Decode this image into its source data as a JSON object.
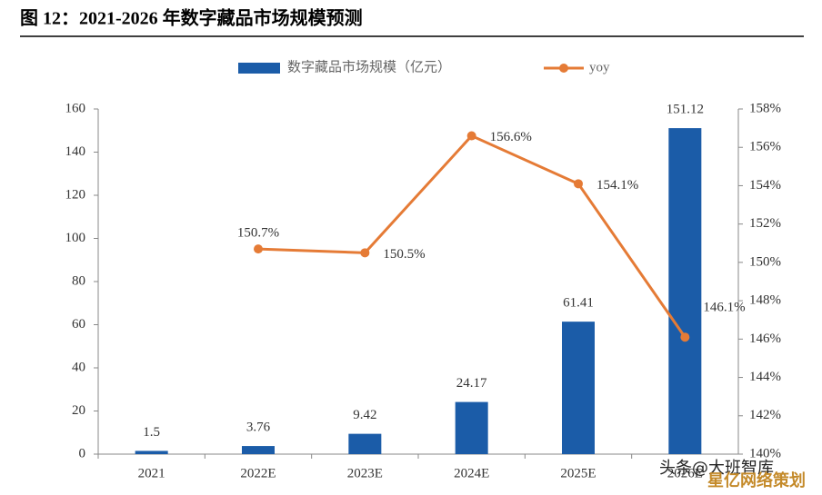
{
  "chart_data": {
    "type": "bar-line",
    "title": "图 12：2021-2026 年数字藏品市场规模预测",
    "categories": [
      "2021",
      "2022E",
      "2023E",
      "2024E",
      "2025E",
      "2026E"
    ],
    "series": [
      {
        "name": "数字藏品市场规模（亿元）",
        "type": "bar",
        "color": "#1b5ca8",
        "values": [
          1.5,
          3.76,
          9.42,
          24.17,
          61.41,
          151.12
        ]
      },
      {
        "name": "yoy",
        "type": "line",
        "axis": "y2",
        "color": "#e57b36",
        "values": [
          null,
          150.7,
          150.5,
          156.6,
          154.1,
          146.1
        ],
        "value_labels": [
          null,
          "150.7%",
          "150.5%",
          "156.6%",
          "154.1%",
          "146.1%"
        ]
      }
    ],
    "ylim": [
      0,
      160
    ],
    "yticks": [
      0,
      20,
      40,
      60,
      80,
      100,
      120,
      140,
      160
    ],
    "y2lim": [
      140,
      158
    ],
    "y2ticks": [
      {
        "value": 140,
        "label": "140%"
      },
      {
        "value": 142,
        "label": "142%"
      },
      {
        "value": 144,
        "label": "144%"
      },
      {
        "value": 146,
        "label": "146%"
      },
      {
        "value": 148,
        "label": "148%"
      },
      {
        "value": 150,
        "label": "150%"
      },
      {
        "value": 152,
        "label": "152%"
      },
      {
        "value": 154,
        "label": "154%"
      },
      {
        "value": 156,
        "label": "156%"
      },
      {
        "value": 158,
        "label": "158%"
      }
    ],
    "watermark": [
      "头条@大班智库",
      "星亿网络策划"
    ]
  }
}
